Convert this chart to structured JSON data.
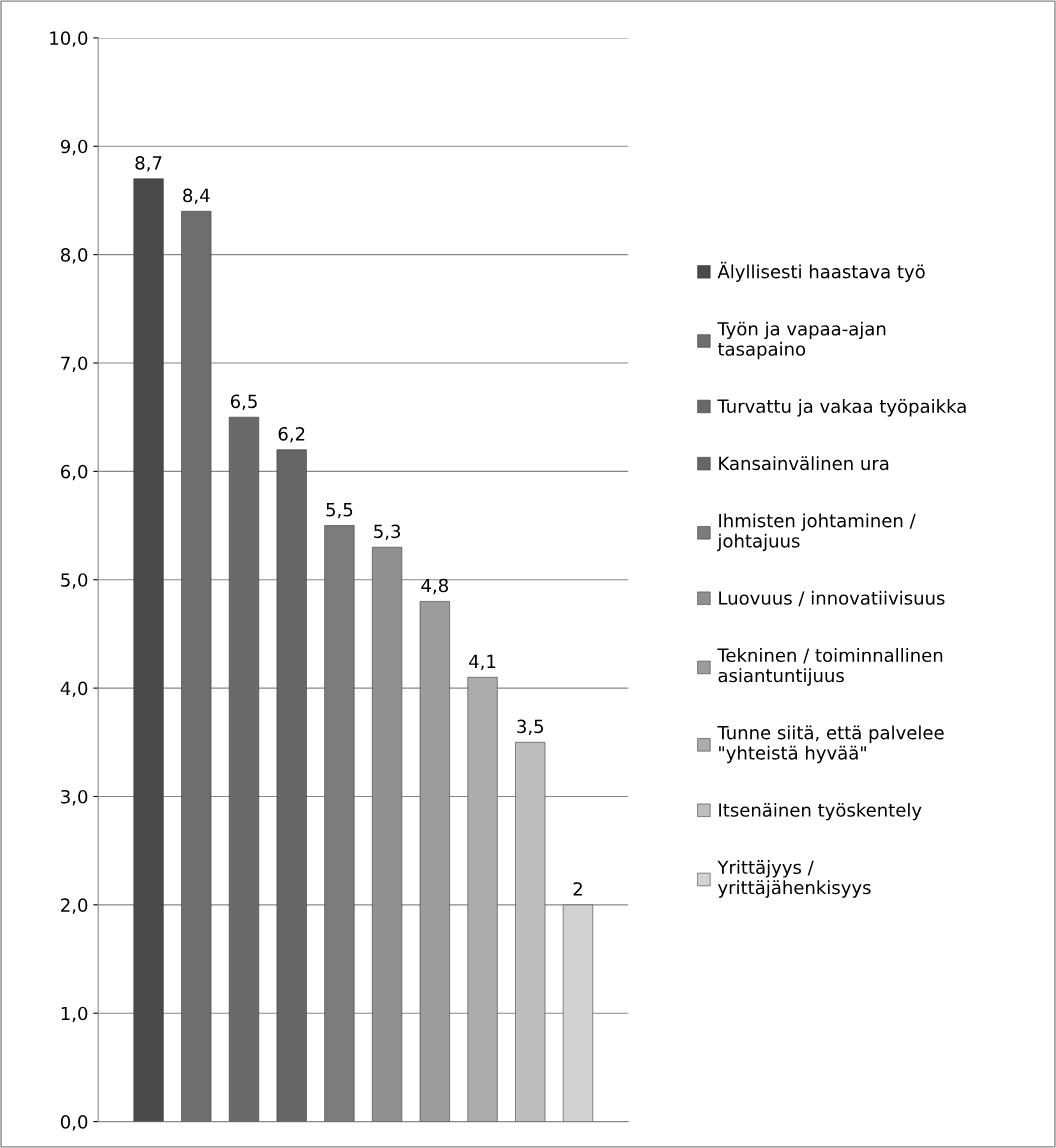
{
  "chart_data": {
    "type": "bar",
    "categories": [
      null
    ],
    "series": [
      {
        "name": "Älyllisesti haastava työ",
        "color": "#4a4a4a",
        "values": [
          8.7
        ],
        "value_labels": [
          "8,7"
        ]
      },
      {
        "name": "Työn ja vapaa-ajan\ntasapaino",
        "color": "#6e6e6e",
        "values": [
          8.4
        ],
        "value_labels": [
          "8,4"
        ]
      },
      {
        "name": "Turvattu ja vakaa työpaikka",
        "color": "#6a6a6a",
        "values": [
          6.5
        ],
        "value_labels": [
          "6,5"
        ]
      },
      {
        "name": "Kansainvälinen ura",
        "color": "#666666",
        "values": [
          6.2
        ],
        "value_labels": [
          "6,2"
        ]
      },
      {
        "name": "Ihmisten johtaminen /\njohtajuus",
        "color": "#7c7c7c",
        "values": [
          5.5
        ],
        "value_labels": [
          "5,5"
        ]
      },
      {
        "name": "Luovuus / innovatiivisuus",
        "color": "#909090",
        "values": [
          5.3
        ],
        "value_labels": [
          "5,3"
        ]
      },
      {
        "name": "Tekninen / toiminnallinen\nasiantuntijuus",
        "color": "#9c9c9c",
        "values": [
          4.8
        ],
        "value_labels": [
          "4,8"
        ]
      },
      {
        "name": "Tunne siitä, että palvelee\n\"yhteistä hyvää\"",
        "color": "#acacac",
        "values": [
          4.1
        ],
        "value_labels": [
          "4,1"
        ]
      },
      {
        "name": "Itsenäinen työskentely",
        "color": "#bdbdbd",
        "values": [
          3.5
        ],
        "value_labels": [
          "3,5"
        ]
      },
      {
        "name": "Yrittäjyys /\nyrittäjähenkisyys",
        "color": "#d2d2d2",
        "values": [
          2
        ],
        "value_labels": [
          "2"
        ]
      }
    ],
    "ylim": [
      0,
      10
    ],
    "yticks": [
      {
        "value": 0,
        "label": "0,0"
      },
      {
        "value": 1,
        "label": "1,0"
      },
      {
        "value": 2,
        "label": "2,0"
      },
      {
        "value": 3,
        "label": "3,0"
      },
      {
        "value": 4,
        "label": "4,0"
      },
      {
        "value": 5,
        "label": "5,0"
      },
      {
        "value": 6,
        "label": "6,0"
      },
      {
        "value": 7,
        "label": "7,0"
      },
      {
        "value": 8,
        "label": "8,0"
      },
      {
        "value": 9,
        "label": "9,0"
      },
      {
        "value": 10,
        "label": "10,0"
      }
    ],
    "grid": "y",
    "legend": "right"
  }
}
